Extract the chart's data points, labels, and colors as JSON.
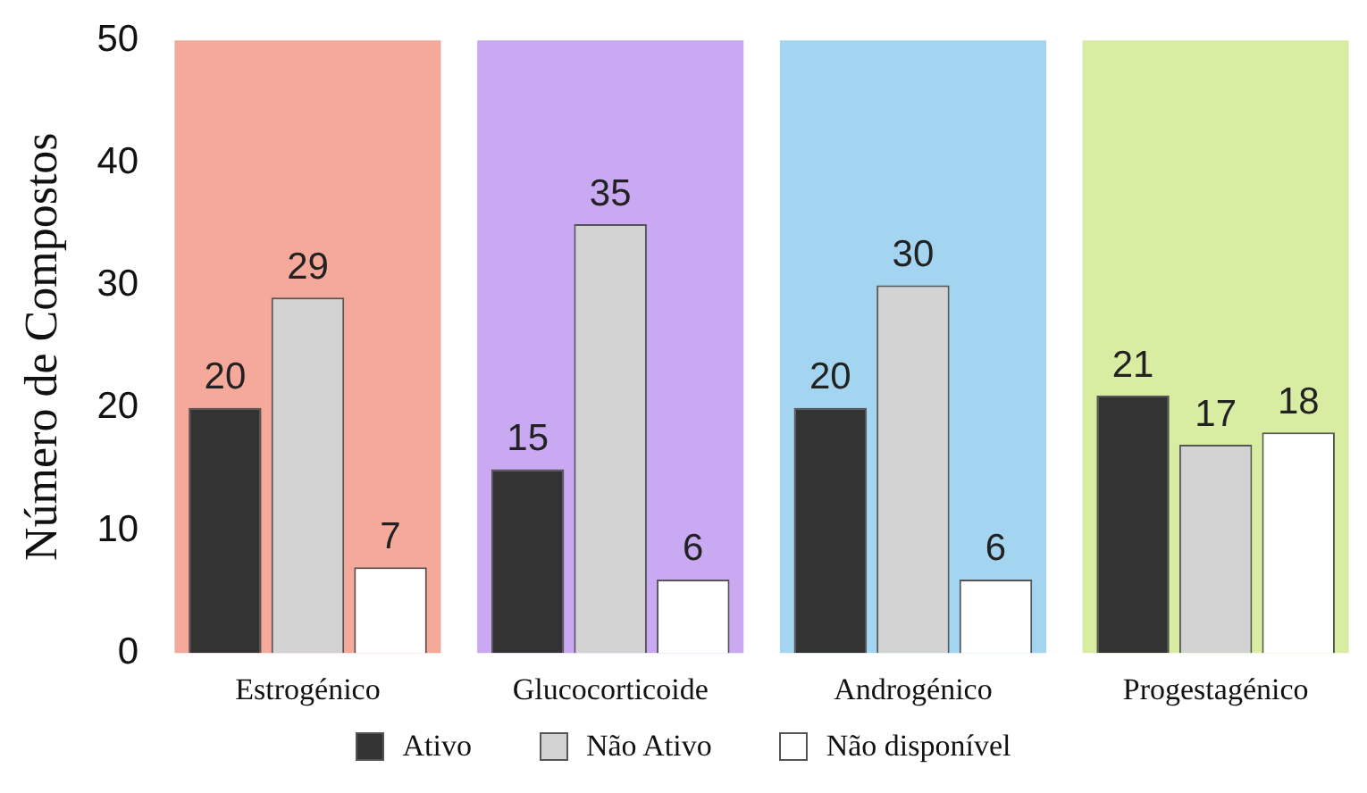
{
  "chart_data": {
    "type": "bar",
    "ylabel": "Número de Compostos",
    "categories": [
      "Estrogénico",
      "Glucocorticoide",
      "Androgénico",
      "Progestagénico"
    ],
    "series": [
      {
        "name": "Ativo",
        "color": "#333333",
        "values": [
          20,
          15,
          20,
          21
        ]
      },
      {
        "name": "Não Ativo",
        "color": "#d3d3d3",
        "values": [
          29,
          35,
          30,
          17
        ]
      },
      {
        "name": "Não disponível",
        "color": "#ffffff",
        "values": [
          7,
          6,
          6,
          18
        ]
      }
    ],
    "ylim": [
      0,
      50
    ],
    "yticks": [
      0,
      10,
      20,
      30,
      40,
      50
    ],
    "bands": [
      {
        "axis": "x",
        "from": "Estrogénico",
        "to": "Estrogénico",
        "color": "#f4a99b"
      },
      {
        "axis": "x",
        "from": "Glucocorticoide",
        "to": "Glucocorticoide",
        "color": "#c9a9f1"
      },
      {
        "axis": "x",
        "from": "Androgénico",
        "to": "Androgénico",
        "color": "#a4d5f0"
      },
      {
        "axis": "x",
        "from": "Progestagénico",
        "to": "Progestagénico",
        "color": "#d8eca2"
      }
    ],
    "data_labels": true,
    "grid": false,
    "legend": "bottom"
  }
}
